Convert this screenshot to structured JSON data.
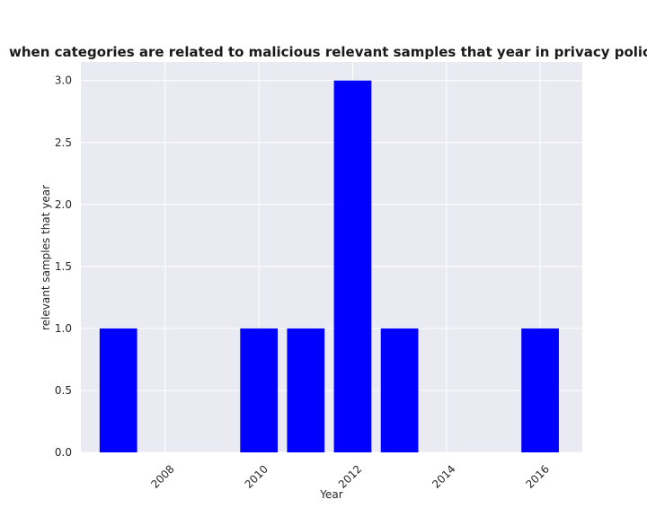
{
  "chart_data": {
    "type": "bar",
    "title": "when categories are related to malicious relevant samples that year in privacy policies by Year",
    "xlabel": "Year",
    "ylabel": "relevant samples that year",
    "x": [
      2007,
      2010,
      2011,
      2012,
      2013,
      2016
    ],
    "values": [
      1,
      1,
      1,
      3,
      1,
      1
    ],
    "xlim": [
      2006.2,
      2016.9
    ],
    "ylim": [
      0,
      3.15
    ],
    "xticks": [
      2008,
      2010,
      2012,
      2014,
      2016
    ],
    "xtick_labels": [
      "2008",
      "2010",
      "2012",
      "2014",
      "2016"
    ],
    "yticks": [
      0.0,
      0.5,
      1.0,
      1.5,
      2.0,
      2.5,
      3.0
    ],
    "ytick_labels": [
      "0.0",
      "0.5",
      "1.0",
      "1.5",
      "2.0",
      "2.5",
      "3.0"
    ],
    "grid": true,
    "bar_color": "#0000ff",
    "background_color": "#eaeaf2",
    "grid_color": "#ffffff"
  }
}
